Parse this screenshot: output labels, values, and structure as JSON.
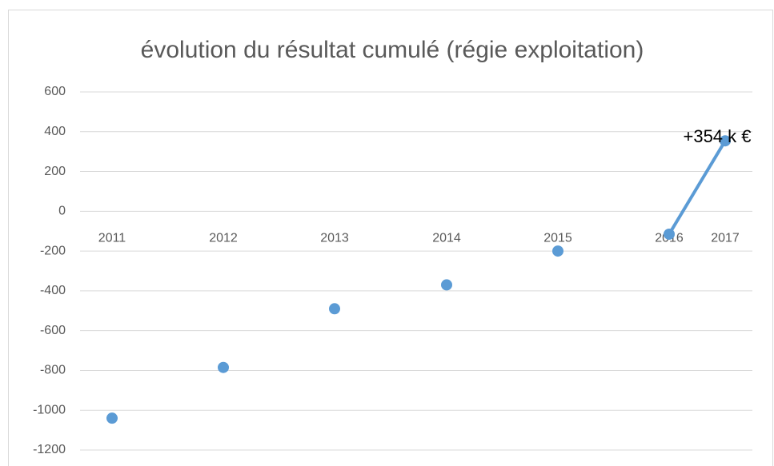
{
  "chart_data": {
    "type": "scatter",
    "title": "évolution du résultat cumulé (régie exploitation)",
    "categories": [
      "2011",
      "2012",
      "2013",
      "2014",
      "2015",
      "2016",
      "2017"
    ],
    "values": [
      -1040,
      -785,
      -490,
      -370,
      -200,
      -115,
      354
    ],
    "value_labels": [
      null,
      null,
      null,
      null,
      null,
      null,
      "+354 k €"
    ],
    "connect_from": 5,
    "color": "#5b9bd5",
    "ylim": [
      -1200,
      600
    ],
    "yticks": [
      -1200,
      -1000,
      -800,
      -600,
      -400,
      -200,
      0,
      200,
      400,
      600
    ],
    "grid": true
  }
}
